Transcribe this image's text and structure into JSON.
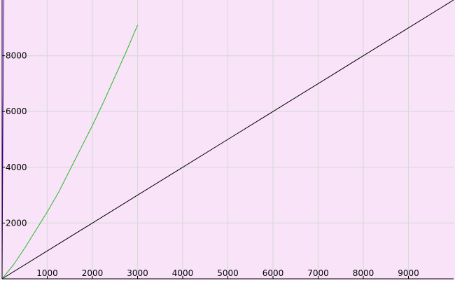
{
  "chart_data": {
    "type": "line",
    "title": "",
    "xlabel": "",
    "ylabel": "",
    "xlim": [
      0,
      10000
    ],
    "ylim": [
      0,
      10000
    ],
    "grid": true,
    "x_ticks": [
      1000,
      2000,
      3000,
      4000,
      5000,
      6000,
      7000,
      8000,
      9000
    ],
    "y_ticks": [
      2000,
      4000,
      6000,
      8000
    ],
    "x_tick_labels": [
      "1000",
      "2000",
      "3000",
      "4000",
      "5000",
      "6000",
      "7000",
      "8000",
      "9000"
    ],
    "y_tick_labels": [
      "2000",
      "4000",
      "6000",
      "8000"
    ],
    "series": [
      {
        "color": "#000000",
        "x": [
          0,
          1000,
          2000,
          3000,
          4000,
          5000,
          6000,
          7000,
          8000,
          9000,
          10000
        ],
        "y": [
          0,
          1000,
          2000,
          3000,
          4000,
          5000,
          6000,
          7000,
          8000,
          9000,
          10000
        ]
      },
      {
        "color": "#22bb22",
        "x": [
          0,
          250,
          500,
          750,
          1000,
          1250,
          1500,
          1750,
          2000,
          2250,
          2500,
          2750,
          3000
        ],
        "y": [
          0,
          500,
          1100,
          1750,
          2400,
          3100,
          3900,
          4700,
          5500,
          6350,
          7250,
          8150,
          9100
        ]
      },
      {
        "color": "#6600cc",
        "x": [
          0,
          20,
          40
        ],
        "y": [
          0,
          6000,
          10000
        ]
      }
    ],
    "colors": {
      "plot_background": "#f9e3f9",
      "grid": "#d9d9d9",
      "axis": "#000000"
    }
  }
}
